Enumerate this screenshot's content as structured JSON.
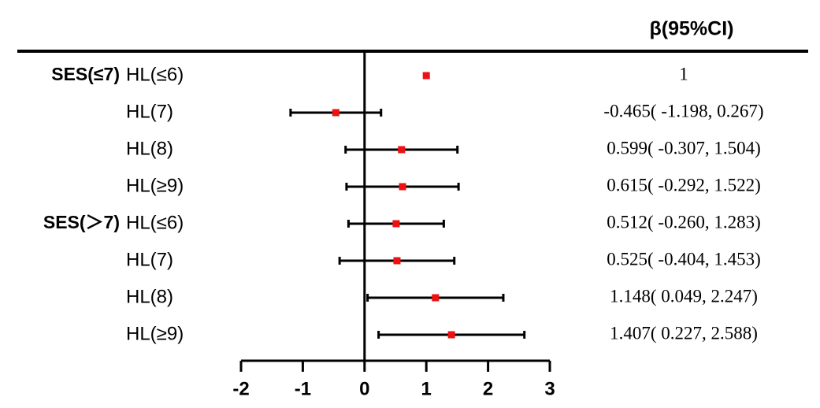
{
  "chart_data": {
    "type": "forest",
    "header": "β(95%CI)",
    "group_labels": [
      "SES(≤7)",
      null,
      null,
      null,
      "SES(＞7)",
      null,
      null,
      null
    ],
    "categories": [
      "HL(≤6)",
      "HL(7)",
      "HL(8)",
      "HL(≥9)",
      "HL(≤6)",
      "HL(7)",
      "HL(8)",
      "HL(≥9)"
    ],
    "values": [
      1,
      -0.465,
      0.599,
      0.615,
      0.512,
      0.525,
      1.148,
      1.407
    ],
    "lower": [
      null,
      -1.198,
      -0.307,
      -0.292,
      -0.26,
      -0.404,
      0.049,
      0.227
    ],
    "upper": [
      null,
      0.267,
      1.504,
      1.522,
      1.283,
      1.453,
      2.247,
      2.588
    ],
    "value_labels": [
      "1",
      "-0.465( -1.198, 0.267)",
      "0.599( -0.307, 1.504)",
      "0.615( -0.292, 1.522)",
      "0.512( -0.260, 1.283)",
      "0.525( -0.404, 1.453)",
      "1.148( 0.049, 2.247)",
      "1.407( 0.227, 2.588)"
    ],
    "color": "#ee1111",
    "xlim": [
      -2,
      3
    ],
    "xticks": [
      -2,
      -1,
      0,
      1,
      2,
      3
    ]
  }
}
